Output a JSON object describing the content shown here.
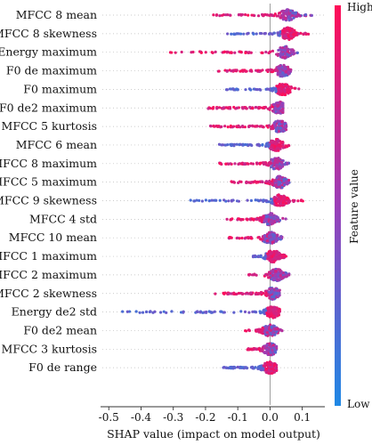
{
  "chart_data": {
    "type": "scatter",
    "subtype": "shap-beeswarm-summary",
    "features": [
      {
        "name": "MFCC 8 mean",
        "min": -0.19,
        "max": 0.13,
        "center": 0.055
      },
      {
        "name": "MFCC 8 skewness",
        "min": -0.15,
        "max": 0.12,
        "center": 0.055
      },
      {
        "name": "Energy maximum",
        "min": -0.33,
        "max": 0.09,
        "center": 0.045
      },
      {
        "name": "F0 de maximum",
        "min": -0.18,
        "max": 0.07,
        "center": 0.04
      },
      {
        "name": "F0 maximum",
        "min": -0.14,
        "max": 0.09,
        "center": 0.04
      },
      {
        "name": "F0 de2 maximum",
        "min": -0.21,
        "max": 0.04,
        "center": 0.03
      },
      {
        "name": "MFCC 5 kurtosis",
        "min": -0.19,
        "max": 0.05,
        "center": 0.03
      },
      {
        "name": "MFCC 6 mean",
        "min": -0.17,
        "max": 0.06,
        "center": 0.02
      },
      {
        "name": "MFCC 8 maximum",
        "min": -0.17,
        "max": 0.06,
        "center": 0.02
      },
      {
        "name": "MFCC 5 maximum",
        "min": -0.12,
        "max": 0.06,
        "center": 0.03
      },
      {
        "name": "MFCC 9 skewness",
        "min": -0.26,
        "max": 0.11,
        "center": 0.03
      },
      {
        "name": "MFCC 4 std",
        "min": -0.14,
        "max": 0.05,
        "center": 0.0
      },
      {
        "name": "MFCC 10 mean",
        "min": -0.13,
        "max": 0.04,
        "center": 0.0
      },
      {
        "name": "MFCC 1 maximum",
        "min": -0.06,
        "max": 0.05,
        "center": 0.01
      },
      {
        "name": "MFCC 2 maximum",
        "min": -0.07,
        "max": 0.06,
        "center": 0.02
      },
      {
        "name": "MFCC 2 skewness",
        "min": -0.18,
        "max": 0.03,
        "center": 0.01
      },
      {
        "name": "Energy de2 std",
        "min": -0.48,
        "max": 0.03,
        "center": 0.01
      },
      {
        "name": "F0 de2 mean",
        "min": -0.08,
        "max": 0.04,
        "center": 0.0
      },
      {
        "name": "MFCC 3 kurtosis",
        "min": -0.08,
        "max": 0.02,
        "center": 0.0
      },
      {
        "name": "F0 de range",
        "min": -0.16,
        "max": 0.02,
        "center": 0.0
      }
    ],
    "x_ticks": [
      "-0.5",
      "-0.4",
      "-0.3",
      "-0.2",
      "-0.1",
      "0.0",
      "0.1"
    ],
    "x_tick_values": [
      -0.5,
      -0.4,
      -0.3,
      -0.2,
      -0.1,
      0.0,
      0.1
    ],
    "xlim": [
      -0.52,
      0.17
    ],
    "xlabel": "SHAP value (impact on model output)",
    "colorbar": {
      "label": "Feature value",
      "high": "High",
      "low": "Low",
      "high_color": "#ff0d57",
      "low_color": "#1e88e5"
    },
    "zero_line": 0.0
  }
}
